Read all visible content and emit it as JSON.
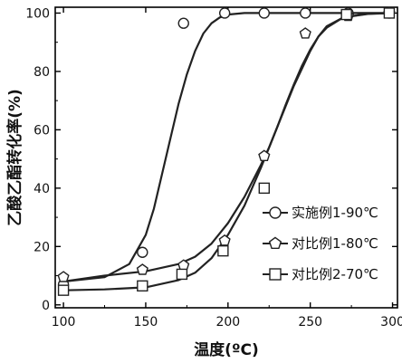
{
  "chart_data": {
    "type": "scatter",
    "title": "",
    "xlabel": "温度(ºC)",
    "ylabel": "乙酸乙酯转化率(%)",
    "xlim": [
      95,
      303
    ],
    "ylim": [
      -1,
      102
    ],
    "xticks": [
      100,
      150,
      200,
      250,
      300
    ],
    "yticks": [
      0,
      20,
      40,
      60,
      80,
      100
    ],
    "xtick_labels": [
      "100",
      "150",
      "200",
      "250",
      "300"
    ],
    "ytick_labels": [
      "0",
      "20",
      "40",
      "60",
      "80",
      "100"
    ],
    "grid": false,
    "legend_position": "bottom-right",
    "series": [
      {
        "name": "实施例1-90℃",
        "marker": "circle",
        "x": [
          100,
          148,
          173,
          198,
          222,
          247,
          273,
          298
        ],
        "y": [
          7,
          18,
          96.5,
          100,
          100,
          100,
          100,
          100
        ],
        "fit": {
          "x": [
            100,
            125,
            140,
            150,
            155,
            160,
            165,
            170,
            175,
            180,
            185,
            190,
            195,
            200,
            210,
            230,
            260,
            300
          ],
          "y": [
            8,
            9.5,
            14,
            24,
            33,
            45,
            57,
            69,
            79,
            87,
            93,
            96.5,
            98.5,
            99.5,
            100,
            100,
            100,
            100
          ]
        }
      },
      {
        "name": "对比例1-80℃",
        "marker": "pentagon",
        "x": [
          100,
          148,
          173,
          198,
          222,
          247,
          273,
          298
        ],
        "y": [
          9.5,
          12,
          13.5,
          22,
          51,
          93,
          99,
          100
        ],
        "fit": {
          "x": [
            100,
            125,
            150,
            170,
            180,
            190,
            200,
            210,
            220,
            225,
            230,
            235,
            240,
            245,
            250,
            255,
            260,
            270,
            285,
            300
          ],
          "y": [
            8,
            10,
            11.5,
            14,
            16.5,
            21,
            28,
            37,
            48,
            54,
            61,
            68,
            75,
            81,
            87,
            92,
            95,
            98.5,
            99.7,
            100
          ]
        }
      },
      {
        "name": "对比例2-70℃",
        "marker": "square",
        "x": [
          100,
          148,
          172,
          197,
          222,
          272,
          298
        ],
        "y": [
          5,
          6.5,
          10.5,
          18.5,
          40,
          99.5,
          100
        ],
        "fit": {
          "x": [
            100,
            125,
            150,
            170,
            180,
            190,
            200,
            210,
            215,
            220,
            225,
            230,
            235,
            240,
            245,
            250,
            255,
            260,
            270,
            285,
            300
          ],
          "y": [
            5,
            5.3,
            6,
            8.5,
            11,
            16,
            24,
            34,
            40.5,
            47,
            54,
            61,
            68.5,
            75.5,
            82,
            87.5,
            92,
            95.5,
            98.5,
            99.8,
            100
          ]
        }
      }
    ]
  }
}
